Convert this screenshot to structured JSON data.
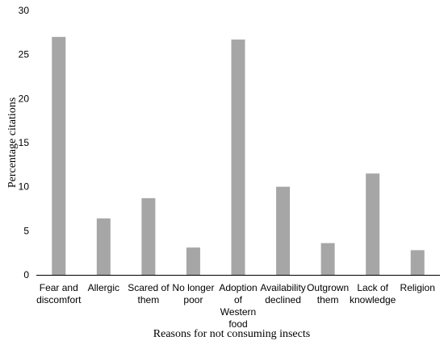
{
  "chart_data": {
    "type": "bar",
    "categories": [
      [
        "Fear and",
        "discomfort"
      ],
      [
        "Allergic"
      ],
      [
        "Scared of",
        "them"
      ],
      [
        "No longer",
        "poor"
      ],
      [
        "Adoption",
        "of",
        "Western",
        "food"
      ],
      [
        "Availability",
        "declined"
      ],
      [
        "Outgrown",
        "them"
      ],
      [
        "Lack of",
        "knowledge"
      ],
      [
        "Religion"
      ]
    ],
    "values": [
      27.0,
      6.4,
      8.7,
      3.1,
      26.7,
      10.0,
      3.6,
      11.5,
      2.8
    ],
    "xlabel": "Reasons for not consuming insects",
    "ylabel": "Percentage citations",
    "ylim": [
      0,
      30
    ],
    "yticks": [
      0,
      5,
      10,
      15,
      20,
      25,
      30
    ],
    "grid": false,
    "bar_color": "#a6a6a6"
  }
}
